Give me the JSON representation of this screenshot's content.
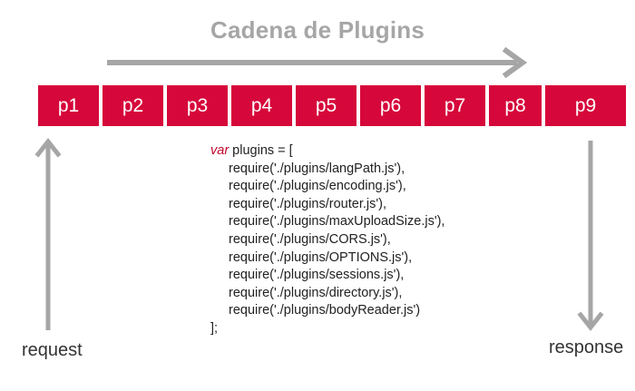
{
  "title": "Cadena de Plugins",
  "plugins": [
    "p1",
    "p2",
    "p3",
    "p4",
    "p5",
    "p6",
    "p7",
    "p8",
    "p9"
  ],
  "colors": {
    "plugin_box": "#d6073a",
    "plugin_text": "#ffffff",
    "arrow": "#a6a6a6",
    "title": "#a6a6a6",
    "keyword": "#c1002b"
  },
  "code": {
    "keyword": "var",
    "declaration": " plugins = [",
    "lines": [
      "require('./plugins/langPath.js'),",
      "require('./plugins/encoding.js'),",
      "require('./plugins/router.js'),",
      "require('./plugins/maxUploadSize.js'),",
      "require('./plugins/CORS.js'),",
      "require('./plugins/OPTIONS.js'),",
      "require('./plugins/sessions.js'),",
      "require('./plugins/directory.js'),",
      "require('./plugins/bodyReader.js')"
    ],
    "closing": "];"
  },
  "labels": {
    "request": "request",
    "response": "response"
  },
  "icons": {
    "flow": "right-arrow-icon",
    "request": "up-arrow-icon",
    "response": "down-arrow-icon"
  }
}
